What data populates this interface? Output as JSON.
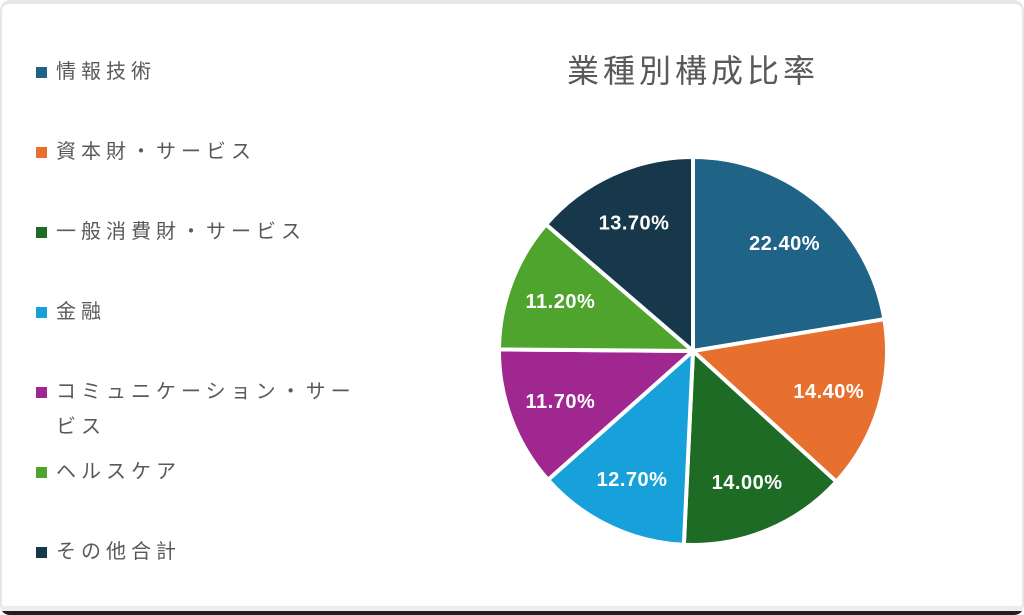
{
  "window": {
    "background": "#ffffff",
    "frame_border_color": "#e7e7e7",
    "bottom_edge_color": "#1f1f1f"
  },
  "chart_data": {
    "type": "pie",
    "title": "業種別構成比率",
    "title_color": "#595959",
    "legend_position": "left",
    "legend_text_color": "#595959",
    "direction": "clockwise",
    "start_angle_deg": 0,
    "slice_separator_color": "#ffffff",
    "data_label_color": "#ffffff",
    "slices": [
      {
        "label": "情報技術",
        "value": 22.4,
        "display": "22.40%",
        "color": "#1f6386"
      },
      {
        "label": "資本財・サービス",
        "value": 14.4,
        "display": "14.40%",
        "color": "#e8702e"
      },
      {
        "label": "一般消費財・サービス",
        "value": 14.0,
        "display": "14.00%",
        "color": "#1d6b25"
      },
      {
        "label": "金融",
        "value": 12.7,
        "display": "12.70%",
        "color": "#18a0db"
      },
      {
        "label": "コミュニケーション・サービス",
        "value": 11.7,
        "display": "11.70%",
        "color": "#a02690"
      },
      {
        "label": "ヘルスケア",
        "value": 11.2,
        "display": "11.20%",
        "color": "#4fa42e"
      },
      {
        "label": "その他合計",
        "value": 13.7,
        "display": "13.70%",
        "color": "#17384a"
      }
    ]
  }
}
